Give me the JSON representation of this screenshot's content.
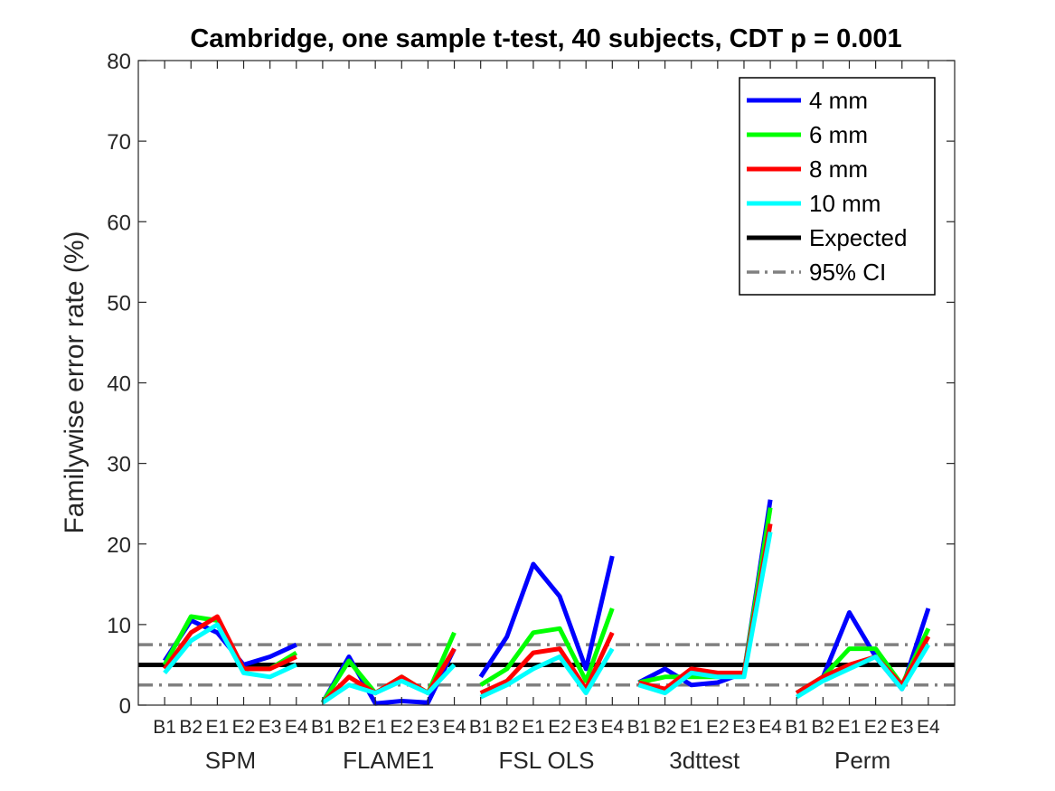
{
  "chart_data": {
    "type": "line",
    "title": "Cambridge, one sample t-test, 40 subjects, CDT p = 0.001",
    "xlabel": "",
    "ylabel": "Familywise error rate (%)",
    "ylim": [
      0,
      80
    ],
    "yticks": [
      0,
      10,
      20,
      30,
      40,
      50,
      60,
      70,
      80
    ],
    "grid": false,
    "legend_location": "top-right",
    "groups": [
      "SPM",
      "FLAME1",
      "FSL OLS",
      "3dttest",
      "Perm"
    ],
    "categories": [
      "B1",
      "B2",
      "E1",
      "E2",
      "E3",
      "E4"
    ],
    "series": [
      {
        "name": "4 mm",
        "color": "#0000ff",
        "values": [
          [
            5.5,
            10.5,
            9.0,
            5.0,
            6.0,
            7.5
          ],
          [
            0.3,
            6.0,
            0.2,
            0.5,
            0.3,
            7.0
          ],
          [
            3.5,
            8.5,
            17.5,
            13.5,
            4.5,
            18.5
          ],
          [
            2.8,
            4.5,
            2.5,
            2.8,
            4.0,
            25.5
          ],
          [
            1.5,
            3.5,
            11.5,
            6.0,
            2.0,
            12.0
          ]
        ]
      },
      {
        "name": "6 mm",
        "color": "#00ff00",
        "values": [
          [
            5.0,
            11.0,
            10.5,
            4.5,
            4.5,
            6.5
          ],
          [
            0.3,
            5.5,
            1.5,
            3.5,
            1.5,
            9.0
          ],
          [
            2.5,
            4.5,
            9.0,
            9.5,
            3.0,
            12.0
          ],
          [
            2.8,
            3.5,
            3.5,
            3.5,
            4.0,
            24.5
          ],
          [
            1.5,
            3.5,
            7.0,
            7.0,
            2.5,
            9.5
          ]
        ]
      },
      {
        "name": "8 mm",
        "color": "#ff0000",
        "values": [
          [
            4.5,
            9.0,
            11.0,
            4.5,
            4.5,
            6.0
          ],
          [
            0.3,
            3.5,
            1.5,
            3.5,
            1.5,
            7.0
          ],
          [
            1.5,
            3.0,
            6.5,
            7.0,
            2.0,
            9.0
          ],
          [
            2.8,
            2.0,
            4.5,
            4.0,
            4.0,
            22.5
          ],
          [
            1.5,
            3.5,
            5.0,
            6.0,
            2.5,
            8.5
          ]
        ]
      },
      {
        "name": "10 mm",
        "color": "#00ffff",
        "values": [
          [
            4.0,
            8.0,
            10.0,
            4.0,
            3.5,
            5.0
          ],
          [
            0.3,
            2.5,
            1.5,
            3.0,
            1.5,
            5.0
          ],
          [
            1.0,
            2.5,
            4.5,
            6.0,
            1.5,
            7.0
          ],
          [
            2.5,
            1.5,
            4.0,
            3.5,
            3.5,
            21.5
          ],
          [
            1.0,
            3.0,
            4.5,
            6.0,
            2.0,
            7.5
          ]
        ]
      }
    ],
    "reference_lines": [
      {
        "name": "Expected",
        "value": 5,
        "color": "#000000",
        "style": "solid"
      },
      {
        "name": "95% CI",
        "values": [
          2.5,
          7.5
        ],
        "color": "#808080",
        "style": "dash-dot"
      }
    ]
  }
}
